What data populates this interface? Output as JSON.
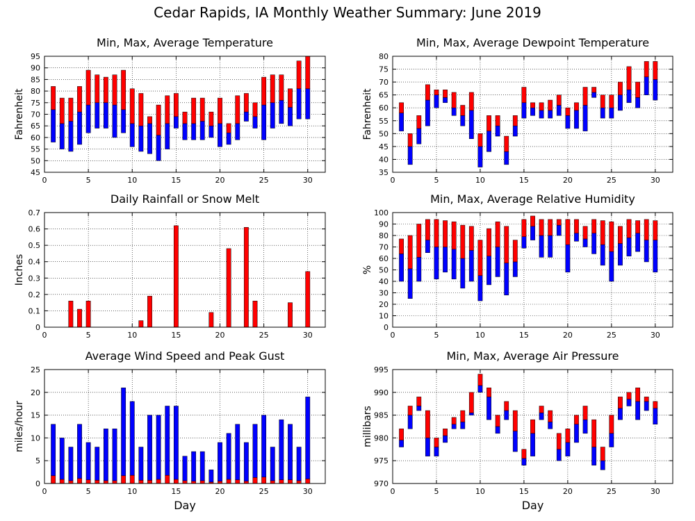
{
  "title": "Cedar Rapids, IA Monthly Weather Summary: June 2019",
  "colors": {
    "upper": "#ff0000",
    "lower": "#0000ff",
    "grid": "#000000"
  },
  "chart_data": [
    {
      "type": "bar",
      "title": "Min, Max, Average Temperature",
      "ylabel": "Fahrenheit",
      "xlabel": "",
      "ylim": [
        45,
        95
      ],
      "yticks": [
        45,
        50,
        55,
        60,
        65,
        70,
        75,
        80,
        85,
        90,
        95
      ],
      "xlim": [
        0,
        32
      ],
      "xticks": [
        0,
        5,
        10,
        15,
        20,
        25,
        30
      ],
      "grid": true,
      "x": [
        1,
        2,
        3,
        4,
        5,
        6,
        7,
        8,
        9,
        10,
        11,
        12,
        13,
        14,
        15,
        16,
        17,
        18,
        19,
        20,
        21,
        22,
        23,
        24,
        25,
        26,
        27,
        28,
        29,
        30
      ],
      "series": [
        {
          "role": "min",
          "values": [
            58,
            55,
            54,
            57,
            62,
            64,
            64,
            60,
            62,
            56,
            54,
            53,
            50,
            55,
            64,
            59,
            59,
            59,
            60,
            56,
            57,
            59,
            67,
            64,
            59,
            64,
            66,
            65,
            68,
            68
          ]
        },
        {
          "role": "avg",
          "values": [
            72,
            66,
            67,
            71,
            74,
            75,
            75,
            74,
            72,
            66,
            65,
            66,
            61,
            66,
            69,
            66,
            66,
            67,
            65,
            66,
            62,
            66,
            71,
            69,
            74,
            75,
            76,
            73,
            81,
            81
          ]
        },
        {
          "role": "max",
          "values": [
            82,
            77,
            77,
            82,
            89,
            87,
            86,
            87,
            89,
            81,
            79,
            69,
            74,
            78,
            79,
            71,
            77,
            77,
            71,
            77,
            66,
            78,
            79,
            75,
            86,
            87,
            87,
            81,
            93,
            95
          ]
        }
      ]
    },
    {
      "type": "bar",
      "title": "Min, Max, Average Dewpoint Temperature",
      "ylabel": "Fahrenheit",
      "xlabel": "",
      "ylim": [
        35,
        80
      ],
      "yticks": [
        35,
        40,
        45,
        50,
        55,
        60,
        65,
        70,
        75,
        80
      ],
      "xlim": [
        0,
        32
      ],
      "xticks": [
        0,
        5,
        10,
        15,
        20,
        25,
        30
      ],
      "grid": true,
      "x": [
        1,
        2,
        3,
        4,
        5,
        6,
        7,
        8,
        9,
        10,
        11,
        12,
        13,
        14,
        15,
        16,
        17,
        18,
        19,
        20,
        21,
        22,
        23,
        24,
        25,
        26,
        27,
        28,
        29,
        30
      ],
      "series": [
        {
          "role": "min",
          "values": [
            51,
            38,
            46,
            53,
            60,
            62,
            57,
            53,
            48,
            37,
            43,
            49,
            38,
            49,
            56,
            57,
            56,
            56,
            57,
            52,
            52,
            51,
            64,
            56,
            56,
            59,
            62,
            60,
            65,
            63
          ]
        },
        {
          "role": "avg",
          "values": [
            58,
            45,
            52,
            63,
            65,
            64,
            60,
            57,
            59,
            45,
            51,
            53,
            43,
            53,
            62,
            60,
            59,
            59,
            61,
            57,
            59,
            61,
            66,
            60,
            60,
            65,
            67,
            64,
            72,
            71
          ]
        },
        {
          "role": "max",
          "values": [
            62,
            50,
            57,
            69,
            67,
            67,
            66,
            61,
            66,
            50,
            57,
            57,
            49,
            57,
            68,
            62,
            62,
            63,
            65,
            60,
            62,
            68,
            68,
            65,
            65,
            70,
            76,
            70,
            78,
            78
          ]
        }
      ]
    },
    {
      "type": "bar",
      "title": "Daily Rainfall or Snow Melt",
      "ylabel": "Inches",
      "xlabel": "",
      "ylim": [
        0,
        0.7
      ],
      "yticks": [
        0,
        0.1,
        0.2,
        0.3,
        0.4,
        0.5,
        0.6,
        0.7
      ],
      "xlim": [
        0,
        32
      ],
      "xticks": [
        0,
        5,
        10,
        15,
        20,
        25,
        30
      ],
      "grid": true,
      "x": [
        1,
        2,
        3,
        4,
        5,
        6,
        7,
        8,
        9,
        10,
        11,
        12,
        13,
        14,
        15,
        16,
        17,
        18,
        19,
        20,
        21,
        22,
        23,
        24,
        25,
        26,
        27,
        28,
        29,
        30
      ],
      "series": [
        {
          "role": "rain",
          "values": [
            0,
            0,
            0.16,
            0.11,
            0.16,
            0,
            0,
            0,
            0,
            0,
            0.04,
            0.19,
            0,
            0,
            0.62,
            0,
            0,
            0,
            0.09,
            0,
            0.48,
            0,
            0.61,
            0.16,
            0,
            0,
            0,
            0.15,
            0,
            0.34
          ]
        }
      ]
    },
    {
      "type": "bar",
      "title": "Min, Max, Average Relative Humidity",
      "ylabel": "%",
      "xlabel": "",
      "ylim": [
        0,
        100
      ],
      "yticks": [
        0,
        10,
        20,
        30,
        40,
        50,
        60,
        70,
        80,
        90,
        100
      ],
      "xlim": [
        0,
        32
      ],
      "xticks": [
        0,
        5,
        10,
        15,
        20,
        25,
        30
      ],
      "grid": true,
      "x": [
        1,
        2,
        3,
        4,
        5,
        6,
        7,
        8,
        9,
        10,
        11,
        12,
        13,
        14,
        15,
        16,
        17,
        18,
        19,
        20,
        21,
        22,
        23,
        24,
        25,
        26,
        27,
        28,
        29,
        30
      ],
      "series": [
        {
          "role": "min",
          "values": [
            40,
            25,
            40,
            65,
            42,
            48,
            42,
            34,
            40,
            23,
            37,
            44,
            28,
            44,
            69,
            76,
            61,
            61,
            80,
            48,
            75,
            70,
            64,
            54,
            40,
            54,
            62,
            66,
            57,
            48
          ]
        },
        {
          "role": "avg",
          "values": [
            64,
            51,
            61,
            76,
            70,
            70,
            68,
            60,
            67,
            45,
            62,
            70,
            56,
            57,
            79,
            88,
            80,
            80,
            89,
            72,
            82,
            77,
            82,
            72,
            66,
            73,
            78,
            82,
            76,
            76
          ]
        },
        {
          "role": "max",
          "values": [
            77,
            80,
            90,
            94,
            94,
            93,
            92,
            89,
            88,
            76,
            86,
            92,
            88,
            76,
            94,
            97,
            94,
            94,
            94,
            94,
            94,
            88,
            94,
            93,
            92,
            88,
            94,
            93,
            94,
            93
          ]
        }
      ]
    },
    {
      "type": "bar",
      "title": "Average Wind Speed and Peak Gust",
      "ylabel": "miles/hour",
      "xlabel": "Day",
      "ylim": [
        0,
        25
      ],
      "yticks": [
        0,
        5,
        10,
        15,
        20,
        25
      ],
      "xlim": [
        0,
        32
      ],
      "xticks": [
        0,
        5,
        10,
        15,
        20,
        25,
        30
      ],
      "grid": true,
      "x": [
        1,
        2,
        3,
        4,
        5,
        6,
        7,
        8,
        9,
        10,
        11,
        12,
        13,
        14,
        15,
        16,
        17,
        18,
        19,
        20,
        21,
        22,
        23,
        24,
        25,
        26,
        27,
        28,
        29,
        30
      ],
      "series": [
        {
          "role": "gust",
          "values": [
            13,
            10,
            8,
            13,
            9,
            8,
            12,
            12,
            21,
            18,
            8,
            15,
            15,
            17,
            17,
            6,
            7,
            7,
            3,
            9,
            11,
            13,
            9,
            13,
            15,
            8,
            14,
            13,
            8,
            19
          ]
        },
        {
          "role": "avg",
          "values": [
            1.7,
            0.9,
            0.6,
            1.1,
            0.8,
            0.7,
            0.6,
            0.6,
            1.7,
            1.8,
            0.7,
            0.7,
            0.9,
            1.8,
            0.9,
            0.6,
            0.5,
            0.6,
            0.3,
            0.5,
            0.9,
            0.8,
            0.5,
            1.3,
            1.4,
            0.6,
            0.8,
            0.8,
            0.6,
            1.0
          ]
        }
      ]
    },
    {
      "type": "bar",
      "title": "Min, Max, Average Air Pressure",
      "ylabel": "millibars",
      "xlabel": "Day",
      "ylim": [
        970,
        995
      ],
      "yticks": [
        970,
        975,
        980,
        985,
        990,
        995
      ],
      "xlim": [
        0,
        32
      ],
      "xticks": [
        0,
        5,
        10,
        15,
        20,
        25,
        30
      ],
      "grid": true,
      "x": [
        1,
        2,
        3,
        4,
        5,
        6,
        7,
        8,
        9,
        10,
        11,
        12,
        13,
        14,
        15,
        16,
        17,
        18,
        19,
        20,
        21,
        22,
        23,
        24,
        25,
        26,
        27,
        28,
        29,
        30
      ],
      "series": [
        {
          "role": "min",
          "values": [
            978,
            982,
            986,
            976,
            976,
            979,
            982,
            982,
            985,
            990,
            984,
            981,
            984,
            977,
            974,
            976,
            984,
            982,
            975,
            976,
            979,
            981,
            974,
            973,
            978,
            984,
            987,
            984,
            986,
            983
          ]
        },
        {
          "role": "avg",
          "values": [
            979.5,
            985,
            987,
            980,
            978,
            980.5,
            983,
            983.5,
            985.5,
            991.5,
            989,
            982.5,
            986,
            981.5,
            975.5,
            981,
            985.5,
            983.5,
            977.5,
            979,
            983,
            984,
            978,
            975,
            981,
            986.5,
            988.5,
            988,
            988,
            986.5
          ]
        },
        {
          "role": "max",
          "values": [
            982,
            987,
            989,
            986,
            980,
            982,
            984.5,
            986,
            990,
            994,
            991,
            985,
            988,
            986,
            977.5,
            984,
            987,
            986,
            981,
            982,
            985,
            987,
            984,
            978,
            985,
            989,
            990,
            991,
            989,
            988
          ]
        }
      ]
    }
  ]
}
